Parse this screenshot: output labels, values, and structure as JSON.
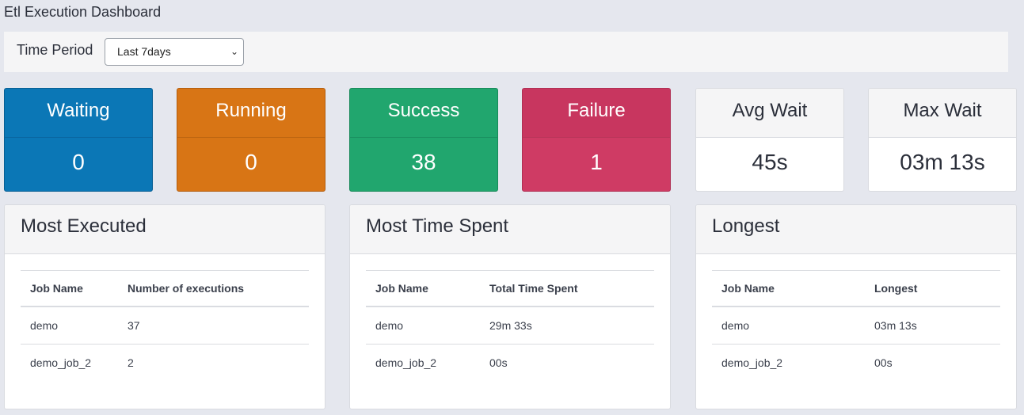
{
  "page": {
    "title": "Etl Execution Dashboard"
  },
  "filter": {
    "label": "Time Period",
    "selected": "Last 7days"
  },
  "stats": [
    {
      "label": "Waiting",
      "value": "0",
      "color": "#0b77b6"
    },
    {
      "label": "Running",
      "value": "0",
      "color": "#d87515"
    },
    {
      "label": "Success",
      "value": "38",
      "color": "#21a66e"
    },
    {
      "label": "Failure",
      "value": "1",
      "color": "#cf3b64"
    },
    {
      "label": "Avg Wait",
      "value": "45s",
      "color": "#ffffff"
    },
    {
      "label": "Max Wait",
      "value": "03m 13s",
      "color": "#ffffff"
    }
  ],
  "panels": {
    "most_executed": {
      "title": "Most Executed",
      "columns": [
        "Job Name",
        "Number of executions"
      ],
      "rows": [
        [
          "demo",
          "37"
        ],
        [
          "demo_job_2",
          "2"
        ]
      ]
    },
    "most_time": {
      "title": "Most Time Spent",
      "columns": [
        "Job Name",
        "Total Time Spent"
      ],
      "rows": [
        [
          "demo",
          "29m 33s"
        ],
        [
          "demo_job_2",
          "00s"
        ]
      ]
    },
    "longest": {
      "title": "Longest",
      "columns": [
        "Job Name",
        "Longest"
      ],
      "rows": [
        [
          "demo",
          "03m 13s"
        ],
        [
          "demo_job_2",
          "00s"
        ]
      ]
    }
  }
}
